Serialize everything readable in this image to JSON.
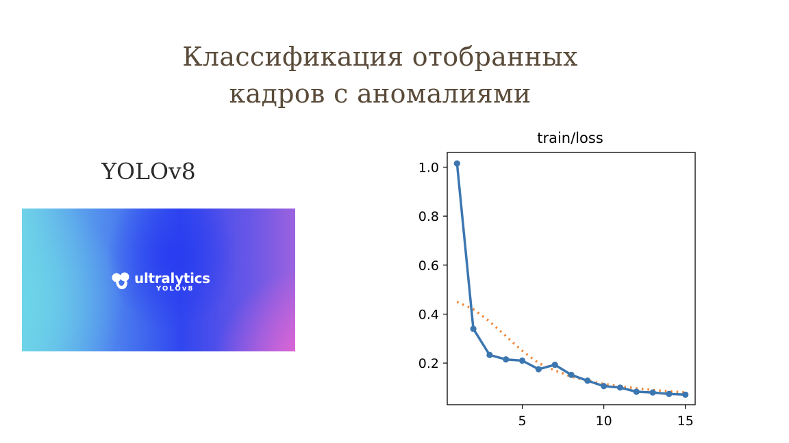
{
  "slide": {
    "title_lines": [
      "Классификация отобранных",
      "кадров с аномалиями"
    ],
    "model_label": "YOLOv8"
  },
  "banner": {
    "brand": "ultralytics",
    "sub": "YOLOv8"
  },
  "chart_data": {
    "type": "line",
    "title": "train/loss",
    "xlabel": "",
    "ylabel": "",
    "xlim": [
      0.4,
      15.6
    ],
    "ylim": [
      0.03,
      1.06
    ],
    "xticks": [
      5,
      10,
      15
    ],
    "xtick_labels": [
      "5",
      "10",
      "15"
    ],
    "yticks": [
      0.2,
      0.4,
      0.6,
      0.8,
      1.0
    ],
    "ytick_labels": [
      "0.2",
      "0.4",
      "0.6",
      "0.8",
      "1.0"
    ],
    "grid": false,
    "series": [
      {
        "style": "solid-markers",
        "color": "#3b76b0",
        "x": [
          1,
          2,
          3,
          4,
          5,
          6,
          7,
          8,
          9,
          10,
          11,
          12,
          13,
          14,
          15
        ],
        "y": [
          1.015,
          0.34,
          0.233,
          0.215,
          0.21,
          0.175,
          0.193,
          0.152,
          0.128,
          0.106,
          0.1,
          0.083,
          0.08,
          0.074,
          0.071
        ]
      },
      {
        "style": "dotted",
        "color": "#ef8636",
        "x": [
          1,
          2,
          3,
          4,
          5,
          6,
          7,
          8,
          9,
          10,
          11,
          12,
          13,
          14,
          15
        ],
        "y": [
          0.45,
          0.42,
          0.37,
          0.31,
          0.25,
          0.2,
          0.17,
          0.145,
          0.128,
          0.115,
          0.105,
          0.097,
          0.09,
          0.085,
          0.08
        ]
      }
    ]
  }
}
